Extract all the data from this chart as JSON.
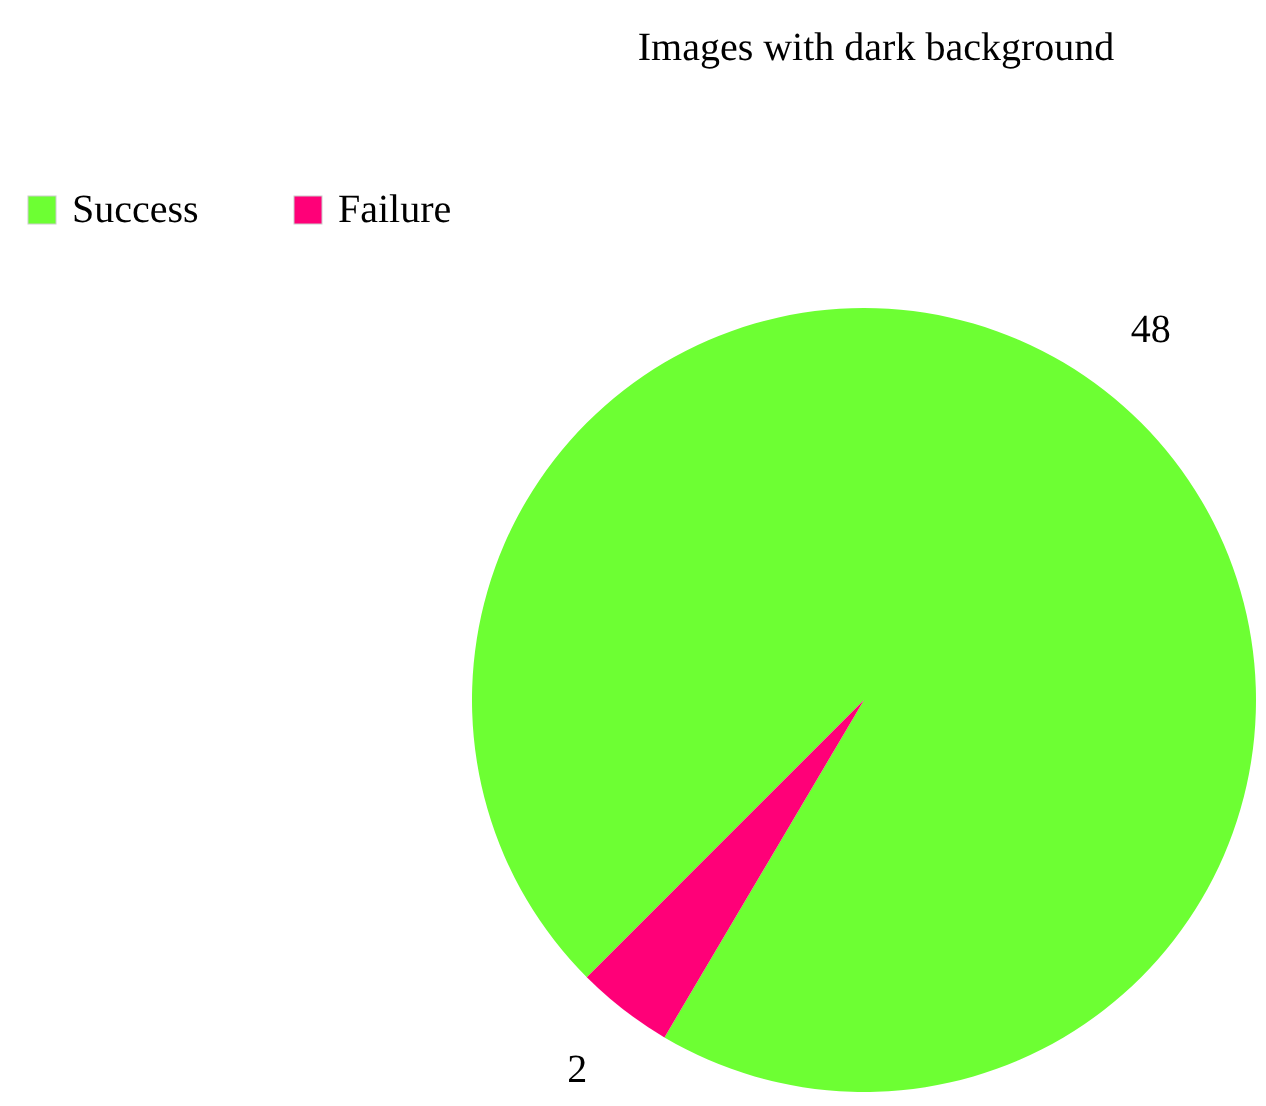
{
  "chart_data": {
    "type": "pie",
    "title": "Images with dark background",
    "categories": [
      "Success",
      "Failure"
    ],
    "values": [
      48,
      2
    ],
    "colors": [
      "#6dff33",
      "#ff0078"
    ],
    "legend": "top left",
    "data_labels": true
  }
}
